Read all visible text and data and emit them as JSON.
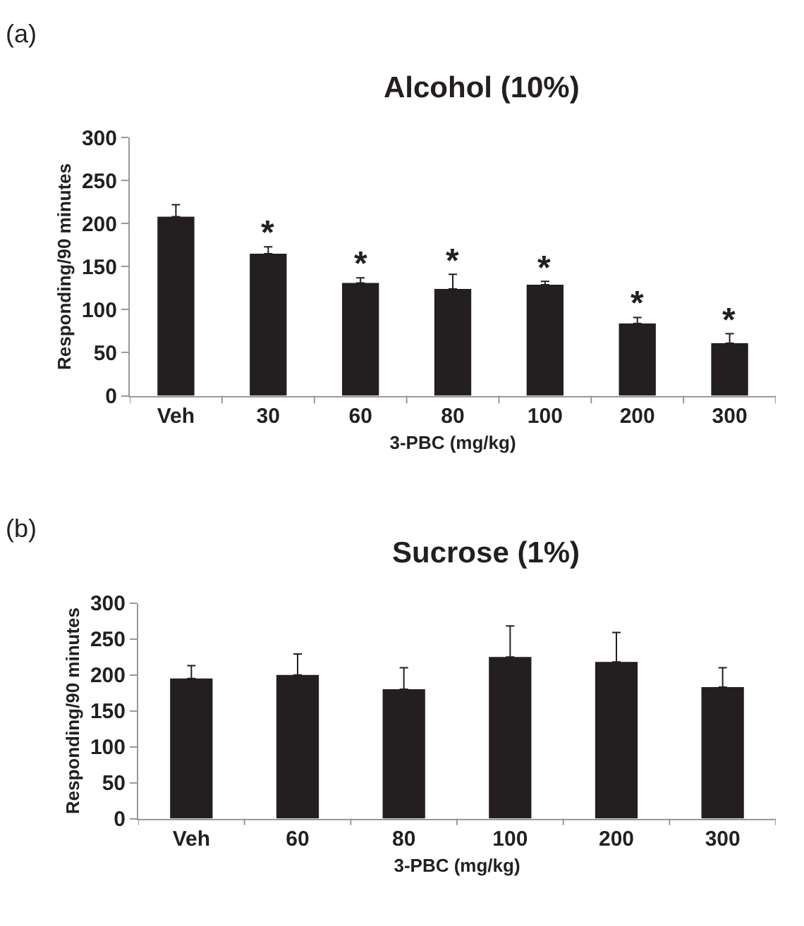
{
  "chart_data": [
    {
      "type": "bar",
      "title": "Alcohol (10%)",
      "xlabel": "3-PBC (mg/kg)",
      "ylabel": "Responding/90 minutes",
      "categories": [
        "Veh",
        "30",
        "60",
        "80",
        "100",
        "200",
        "300"
      ],
      "values": [
        208,
        165,
        131,
        124,
        129,
        84,
        61
      ],
      "errors": [
        [
          208,
          222
        ],
        [
          165,
          173
        ],
        [
          131,
          137
        ],
        [
          124,
          141
        ],
        [
          129,
          133
        ],
        [
          84,
          91
        ],
        [
          61,
          72
        ]
      ],
      "color": "#231f20",
      "ylim": [
        0,
        300
      ],
      "yticks": [
        0,
        50,
        100,
        150,
        200,
        250,
        300
      ],
      "annotations": [
        "(a)",
        {
          "text": "*",
          "x": "30",
          "y": 173
        },
        {
          "text": "*",
          "x": "60",
          "y": 137
        },
        {
          "text": "*",
          "x": "80",
          "y": 141
        },
        {
          "text": "*",
          "x": "100",
          "y": 133
        },
        {
          "text": "*",
          "x": "200",
          "y": 91
        },
        {
          "text": "*",
          "x": "300",
          "y": 72
        }
      ]
    },
    {
      "type": "bar",
      "title": "Sucrose (1%)",
      "xlabel": "3-PBC (mg/kg)",
      "ylabel": "Responding/90 minutes",
      "categories": [
        "Veh",
        "60",
        "80",
        "100",
        "200",
        "300"
      ],
      "values": [
        195,
        200,
        180,
        225,
        218,
        183
      ],
      "errors": [
        [
          195,
          213
        ],
        [
          200,
          229
        ],
        [
          180,
          210
        ],
        [
          225,
          268
        ],
        [
          218,
          259
        ],
        [
          183,
          210
        ]
      ],
      "color": "#231f20",
      "ylim": [
        0,
        300
      ],
      "yticks": [
        0,
        50,
        100,
        150,
        200,
        250,
        300
      ],
      "annotations": [
        "(b)"
      ]
    }
  ]
}
